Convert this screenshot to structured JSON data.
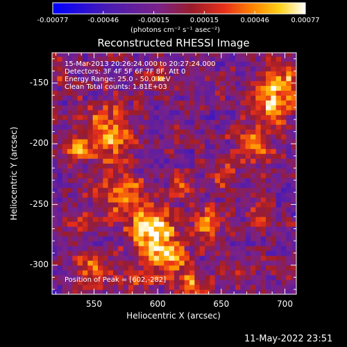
{
  "chart_data": {
    "type": "heatmap",
    "title": "Reconstructed RHESSI Image",
    "xlabel": "Heliocentric X (arcsec)",
    "ylabel": "Heliocentric Y (arcsec)",
    "xlim": [
      517,
      709
    ],
    "ylim": [
      -324,
      -125
    ],
    "x_ticks": [
      550,
      600,
      650,
      700
    ],
    "y_ticks": [
      -150,
      -200,
      -250,
      -300
    ],
    "colorbar": {
      "ticks": [
        "-0.00077",
        "-0.00046",
        "-0.00015",
        "0.00015",
        "0.00046",
        "0.00077"
      ],
      "unit": "(photons cm⁻² s⁻¹ asec⁻²)",
      "range": [
        -0.00077,
        0.00077
      ],
      "colors": [
        "#0000ff",
        "#5a1aa8",
        "#7a2288",
        "#8c1f1f",
        "#e0251a",
        "#ff7a00",
        "#ffd21a",
        "#ffffff"
      ]
    },
    "annotations": {
      "time": "15-Mar-2013 20:26:24.000 to 20:27:24.000",
      "detectors": "Detectors: 3F 4F 5F 6F 7F 8F, Att 0",
      "energy": "Energy Range: 25.0 - 50.0 keV",
      "clean": "Clean    Total counts: 1.81E+03",
      "peak": "Position of Peak = [602,-282]"
    },
    "sources": [
      {
        "x": 595,
        "y": -268,
        "r": 12,
        "v": 0.00077
      },
      {
        "x": 606,
        "y": -292,
        "r": 12,
        "v": 0.00072
      },
      {
        "x": 560,
        "y": -190,
        "r": 14,
        "v": 0.00068
      },
      {
        "x": 573,
        "y": -240,
        "r": 12,
        "v": 0.00062
      },
      {
        "x": 640,
        "y": -262,
        "r": 8,
        "v": 0.0006
      },
      {
        "x": 690,
        "y": -165,
        "r": 12,
        "v": 0.00066
      },
      {
        "x": 675,
        "y": -200,
        "r": 10,
        "v": 0.00058
      },
      {
        "x": 697,
        "y": -145,
        "r": 8,
        "v": 0.00055
      },
      {
        "x": 536,
        "y": -205,
        "r": 7,
        "v": 0.0005
      },
      {
        "x": 627,
        "y": -318,
        "r": 8,
        "v": 0.00054
      },
      {
        "x": 550,
        "y": -300,
        "r": 9,
        "v": 0.00048
      },
      {
        "x": 620,
        "y": -235,
        "r": 7,
        "v": 0.0004
      },
      {
        "x": 602,
        "y": -148,
        "r": 6,
        "v": 0.0004
      },
      {
        "x": 682,
        "y": -258,
        "r": 6,
        "v": 0.00045
      },
      {
        "x": 660,
        "y": -305,
        "r": 6,
        "v": 0.00038
      },
      {
        "x": 583,
        "y": -315,
        "r": 6,
        "v": 0.00036
      },
      {
        "x": 653,
        "y": -225,
        "r": 7,
        "v": 0.00035
      },
      {
        "x": 540,
        "y": -265,
        "r": 6,
        "v": 0.0003
      },
      {
        "x": 524,
        "y": -145,
        "r": 6,
        "v": 0.0003
      }
    ],
    "footer_timestamp": "11-May-2022 23:51"
  }
}
